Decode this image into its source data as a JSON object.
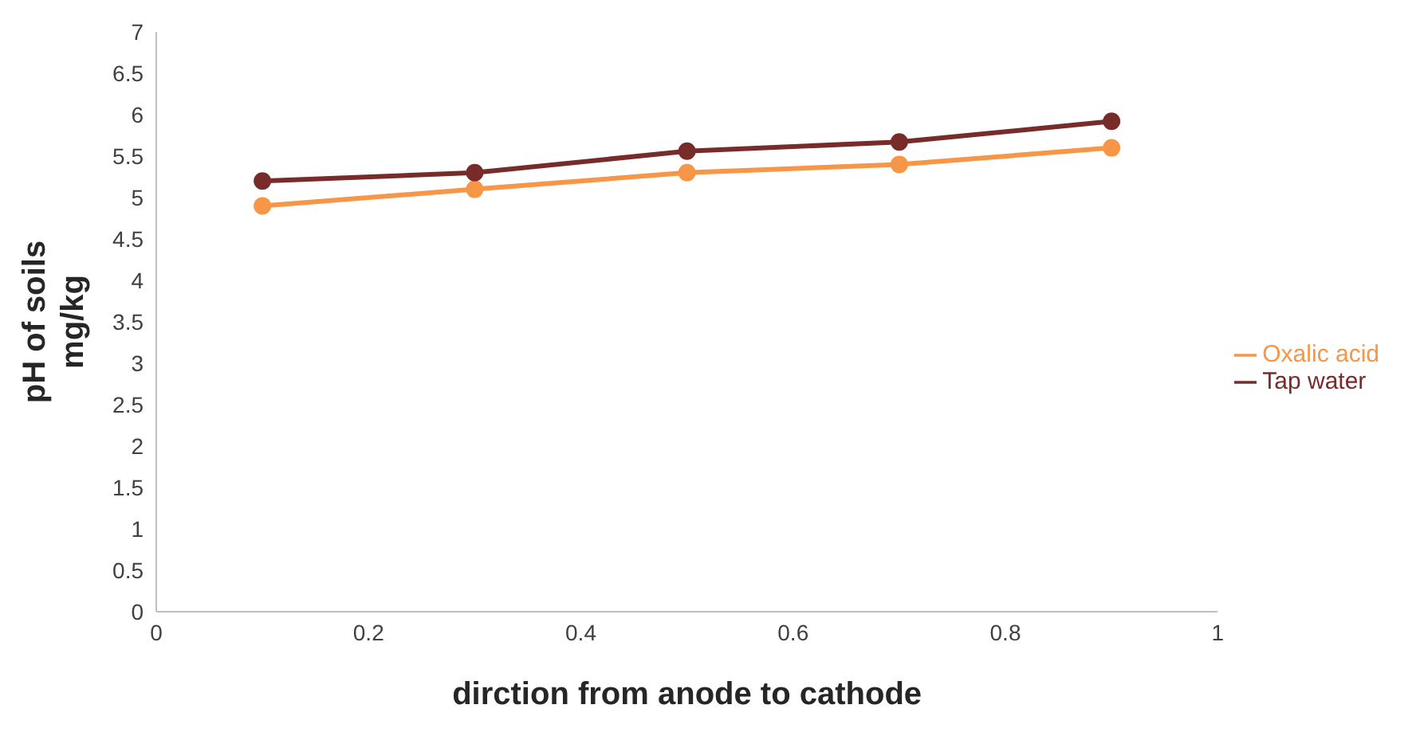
{
  "chart_data": {
    "type": "line",
    "xlabel": "dirction from anode to cathode",
    "ylabel": "pH of soils\nmg/kg",
    "x": [
      0.1,
      0.3,
      0.5,
      0.7,
      0.9
    ],
    "series": [
      {
        "name": "Oxalic acid",
        "color": "#f79646",
        "values": [
          4.9,
          5.1,
          5.3,
          5.4,
          5.6
        ]
      },
      {
        "name": "Tap water",
        "color": "#772c2a",
        "values": [
          5.2,
          5.3,
          5.56,
          5.67,
          5.92
        ]
      }
    ],
    "xlim": [
      0,
      1
    ],
    "xticks": [
      0,
      0.2,
      0.4,
      0.6,
      0.8,
      1
    ],
    "ylim": [
      0,
      7
    ],
    "yticks": [
      0,
      0.5,
      1,
      1.5,
      2,
      2.5,
      3,
      3.5,
      4,
      4.5,
      5,
      5.5,
      6,
      6.5,
      7
    ],
    "grid": false,
    "legend": "right",
    "marker": "circle",
    "line_style": "solid"
  }
}
